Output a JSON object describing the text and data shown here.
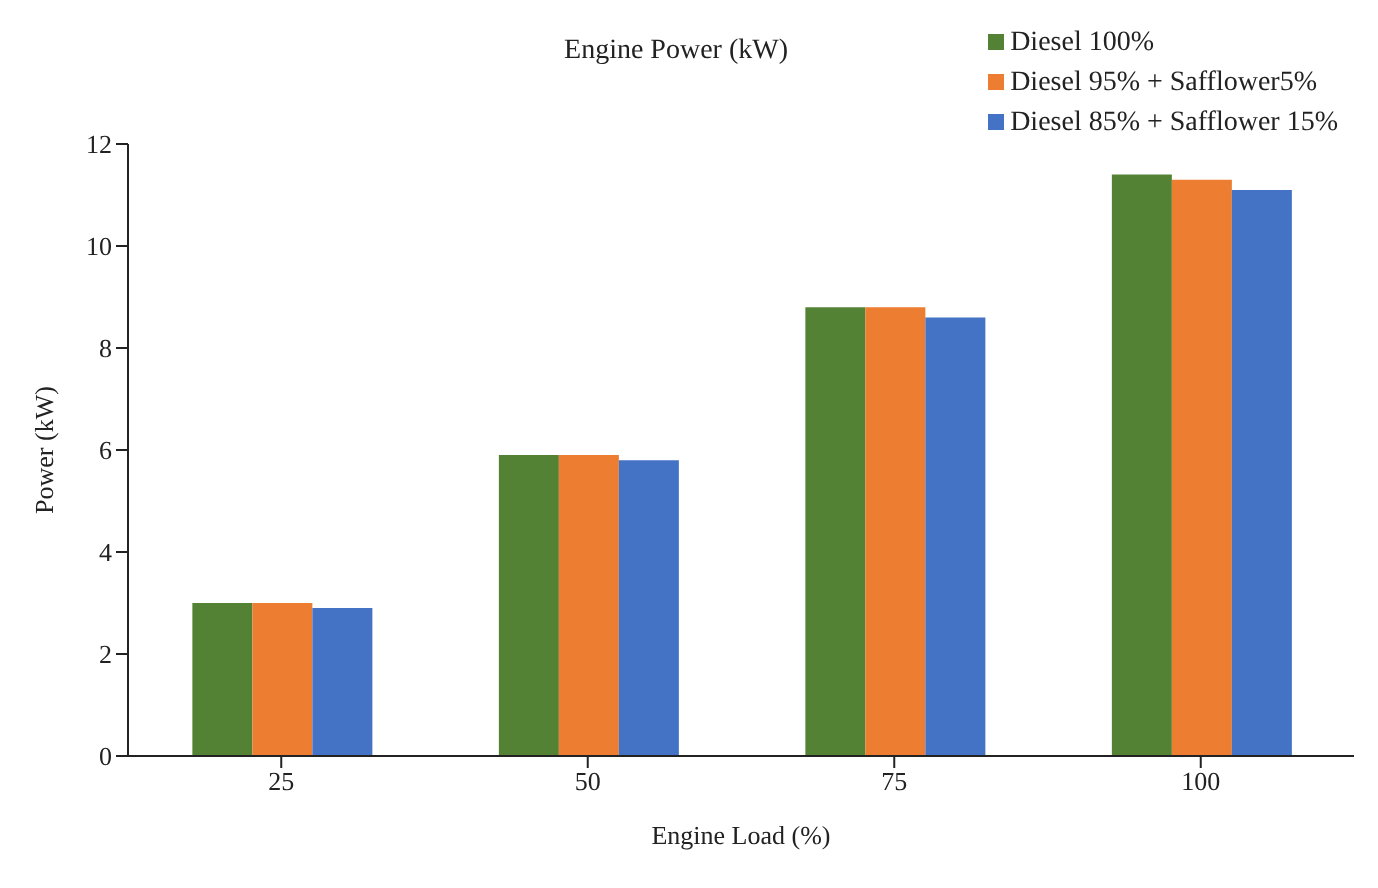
{
  "chart_data": {
    "type": "bar",
    "title": "Engine Power (kW)",
    "xlabel": "Engine Load (%)",
    "ylabel": "Power (kW)",
    "categories": [
      "25",
      "50",
      "75",
      "100"
    ],
    "series": [
      {
        "name": "Diesel 100%",
        "color": "#548235",
        "values": [
          3.0,
          5.9,
          8.8,
          11.4
        ]
      },
      {
        "name": "Diesel 95% + Safflower5%",
        "color": "#ed7d31",
        "values": [
          3.0,
          5.9,
          8.8,
          11.3
        ]
      },
      {
        "name": "Diesel 85% + Safflower 15%",
        "color": "#4472c4",
        "values": [
          2.9,
          5.8,
          8.6,
          11.1
        ]
      }
    ],
    "ylim": [
      0,
      12
    ],
    "yticks": [
      0,
      2,
      4,
      6,
      8,
      10,
      12
    ],
    "grid": false,
    "legend": "top right"
  }
}
